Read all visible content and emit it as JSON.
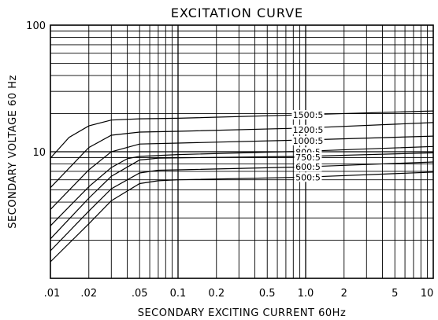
{
  "chart_data": {
    "type": "line",
    "title": "EXCITATION CURVE",
    "xlabel": "SECONDARY EXCITING CURRENT 60Hz",
    "ylabel": "SECONDARY VOLTAGE 60 Hz",
    "x_scale": "log",
    "y_scale": "log",
    "xlim": [
      0.01,
      10
    ],
    "ylim": [
      1,
      100
    ],
    "x_ticks": [
      0.01,
      0.02,
      0.05,
      0.1,
      0.2,
      0.5,
      1.0,
      2,
      5,
      10
    ],
    "x_tick_labels": [
      ".01",
      ".02",
      ".05",
      "0.1",
      "0.2",
      "0.5",
      "1.0",
      "2",
      "5",
      "10"
    ],
    "y_ticks": [
      10,
      100
    ],
    "y_tick_labels": [
      "10",
      "100"
    ],
    "grid": true,
    "series": [
      {
        "name": "1500:5",
        "x": [
          0.01,
          0.014,
          0.02,
          0.03,
          0.05,
          0.1,
          1.0,
          10
        ],
        "y": [
          8.9,
          13,
          16,
          17.8,
          18.2,
          18.4,
          19.6,
          21
        ]
      },
      {
        "name": "1200:5",
        "x": [
          0.01,
          0.02,
          0.03,
          0.05,
          0.1,
          1.0,
          10
        ],
        "y": [
          5.2,
          10.8,
          13.5,
          14.3,
          14.5,
          15.4,
          17
        ]
      },
      {
        "name": "1000:5",
        "x": [
          0.01,
          0.02,
          0.03,
          0.05,
          0.1,
          1.0,
          10
        ],
        "y": [
          3.5,
          7.2,
          10,
          11.5,
          11.7,
          12.4,
          13.3
        ]
      },
      {
        "name": "800:5",
        "x": [
          0.01,
          0.02,
          0.03,
          0.04,
          0.05,
          0.1,
          1.0,
          10
        ],
        "y": [
          2.6,
          5.3,
          7.5,
          8.8,
          9.2,
          9.5,
          10.1,
          11
        ]
      },
      {
        "name": "750:5",
        "x": [
          0.01,
          0.02,
          0.03,
          0.05,
          0.07,
          0.1,
          1.0,
          10
        ],
        "y": [
          2.05,
          4.3,
          6.4,
          8.6,
          8.9,
          8.95,
          9.2,
          9.8
        ]
      },
      {
        "name": "600:5",
        "x": [
          0.01,
          0.02,
          0.03,
          0.05,
          0.07,
          0.1,
          1.0,
          10
        ],
        "y": [
          1.65,
          3.4,
          5.1,
          6.8,
          7.15,
          7.2,
          7.6,
          8.3
        ]
      },
      {
        "name": "500:5",
        "x": [
          0.01,
          0.02,
          0.03,
          0.05,
          0.07,
          0.1,
          1.0,
          10
        ],
        "y": [
          1.35,
          2.7,
          4.1,
          5.6,
          5.9,
          6.0,
          6.3,
          6.9
        ]
      }
    ]
  }
}
